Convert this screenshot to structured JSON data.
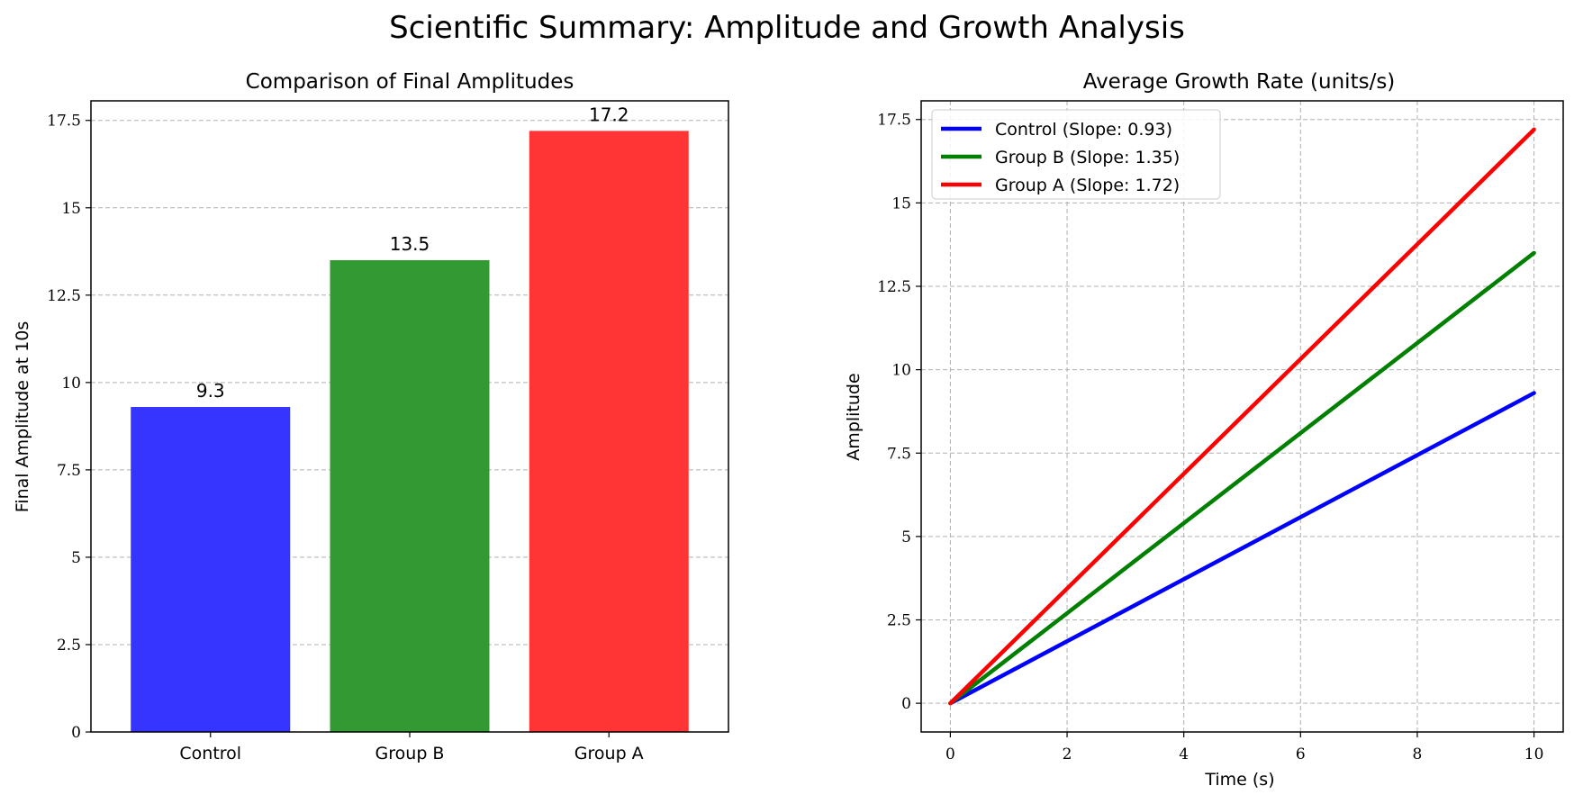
{
  "figure": {
    "title": "Scientific Summary: Amplitude and Growth Analysis"
  },
  "chart_data": [
    {
      "type": "bar",
      "title": "Comparison of Final Amplitudes",
      "xlabel": "",
      "ylabel": "Final Amplitude at 10s",
      "categories": [
        "Control",
        "Group B",
        "Group A"
      ],
      "values": [
        9.3,
        13.5,
        17.2
      ],
      "value_labels": [
        "9.3",
        "13.5",
        "17.2"
      ],
      "colors": [
        "#3535ff",
        "#339933",
        "#ff3535"
      ],
      "ylim": [
        0,
        18.06
      ],
      "yticks": [
        0,
        2.5,
        5,
        7.5,
        10,
        12.5,
        15,
        17.5
      ],
      "ytick_labels": [
        "0",
        "2.5",
        "5",
        "7.5",
        "10",
        "12.5",
        "15",
        "17.5"
      ],
      "grid": "y-dashed"
    },
    {
      "type": "line",
      "title": "Average Growth Rate (units/s)",
      "xlabel": "Time (s)",
      "ylabel": "Amplitude",
      "xlim": [
        -0.5,
        10.5
      ],
      "ylim": [
        -0.86,
        18.06
      ],
      "xticks": [
        0,
        2,
        4,
        6,
        8,
        10
      ],
      "xtick_labels": [
        "0",
        "2",
        "4",
        "6",
        "8",
        "10"
      ],
      "yticks": [
        0,
        2.5,
        5,
        7.5,
        10,
        12.5,
        15,
        17.5
      ],
      "ytick_labels": [
        "0",
        "2.5",
        "5",
        "7.5",
        "10",
        "12.5",
        "15",
        "17.5"
      ],
      "grid": "both-dashed",
      "legend_position": "top-left",
      "series": [
        {
          "name": "Control (Slope: 0.93)",
          "color": "#0000ff",
          "x": [
            0,
            10
          ],
          "y": [
            0,
            9.3
          ]
        },
        {
          "name": "Group B (Slope: 1.35)",
          "color": "#008000",
          "x": [
            0,
            10
          ],
          "y": [
            0,
            13.5
          ]
        },
        {
          "name": "Group A (Slope: 1.72)",
          "color": "#ff0000",
          "x": [
            0,
            10
          ],
          "y": [
            0,
            17.2
          ]
        }
      ]
    }
  ]
}
